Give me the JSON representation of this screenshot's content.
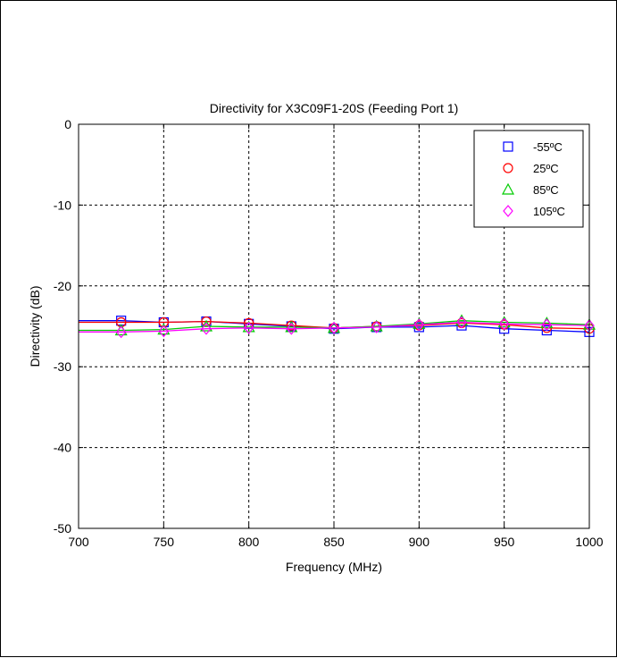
{
  "chart_data": {
    "type": "line",
    "title": "Directivity for X3C09F1-20S (Feeding Port 1)",
    "xlabel": "Frequency (MHz)",
    "ylabel": "Directivity (dB)",
    "xlim": [
      700,
      1000
    ],
    "ylim": [
      -50,
      0
    ],
    "xticks": [
      700,
      750,
      800,
      850,
      900,
      950,
      1000
    ],
    "yticks": [
      0,
      -10,
      -20,
      -30,
      -40,
      -50
    ],
    "grid": true,
    "legend_position": "top-right",
    "x": [
      700,
      725,
      750,
      775,
      800,
      825,
      850,
      875,
      900,
      925,
      950,
      975,
      1000
    ],
    "series": [
      {
        "name": "-55ºC",
        "color": "#0000ff",
        "marker": "square",
        "values": [
          -24.3,
          -24.3,
          -24.5,
          -24.4,
          -24.7,
          -25.0,
          -25.3,
          -25.1,
          -25.1,
          -24.9,
          -25.3,
          -25.5,
          -25.7
        ]
      },
      {
        "name": "25ºC",
        "color": "#ff0000",
        "marker": "circle",
        "values": [
          -24.5,
          -24.5,
          -24.5,
          -24.4,
          -24.6,
          -24.9,
          -25.2,
          -25.0,
          -24.9,
          -24.6,
          -24.8,
          -25.2,
          -25.3
        ]
      },
      {
        "name": "85ºC",
        "color": "#00cc00",
        "marker": "triangle",
        "values": [
          -25.5,
          -25.5,
          -25.4,
          -25.0,
          -25.1,
          -25.1,
          -25.2,
          -25.0,
          -24.7,
          -24.3,
          -24.5,
          -24.6,
          -24.8
        ]
      },
      {
        "name": "105ºC",
        "color": "#ff00ff",
        "marker": "diamond",
        "values": [
          -25.7,
          -25.7,
          -25.6,
          -25.3,
          -25.2,
          -25.3,
          -25.2,
          -25.1,
          -24.8,
          -24.5,
          -24.7,
          -24.8,
          -24.9
        ]
      }
    ]
  }
}
